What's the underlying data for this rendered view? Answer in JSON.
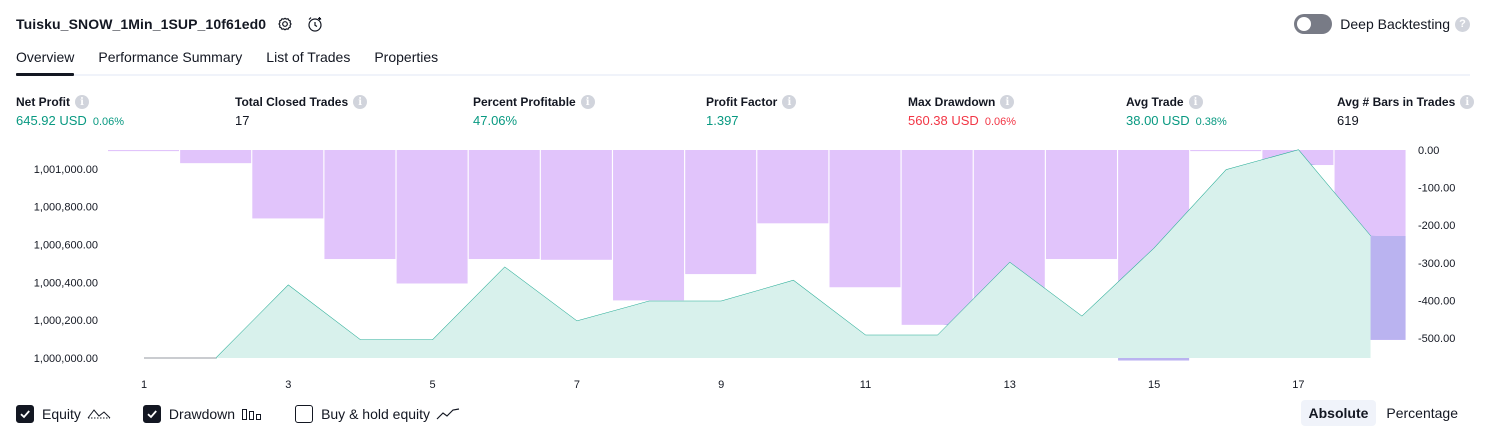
{
  "header": {
    "strategy_name": "Tuisku_SNOW_1Min_1SUP_10f61ed0",
    "icons": [
      "settings-gear-icon",
      "alert-clock-icon"
    ]
  },
  "deep_backtesting": {
    "label": "Deep Backtesting",
    "enabled": false
  },
  "tabs": [
    {
      "label": "Overview",
      "active": true
    },
    {
      "label": "Performance Summary",
      "active": false
    },
    {
      "label": "List of Trades",
      "active": false
    },
    {
      "label": "Properties",
      "active": false
    }
  ],
  "metrics": {
    "net_profit": {
      "label": "Net Profit",
      "value": "645.92 USD",
      "pct": "0.06%"
    },
    "total_closed_trades": {
      "label": "Total Closed Trades",
      "value": "17"
    },
    "percent_profitable": {
      "label": "Percent Profitable",
      "value": "47.06%"
    },
    "profit_factor": {
      "label": "Profit Factor",
      "value": "1.397"
    },
    "max_drawdown": {
      "label": "Max Drawdown",
      "value": "560.38 USD",
      "pct": "0.06%"
    },
    "avg_trade": {
      "label": "Avg Trade",
      "value": "38.00 USD",
      "pct": "0.38%"
    },
    "avg_bars": {
      "label": "Avg # Bars in Trades",
      "value": "619"
    }
  },
  "chart_data": {
    "type": "line",
    "colors": {
      "equity_line": "#22ab94",
      "equity_fill": "#d8f1ec",
      "drawdown": "#e1c4fb",
      "overlap": "#b7b2ef",
      "axis": "#131722"
    },
    "x_ticks": [
      "1",
      "3",
      "5",
      "7",
      "9",
      "11",
      "13",
      "15",
      "17"
    ],
    "left_axis": {
      "ticks": [
        "1,000,000.00",
        "1,000,200.00",
        "1,000,400.00",
        "1,000,600.00",
        "1,000,800.00",
        "1,001,000.00"
      ],
      "ylim": [
        1000000,
        1001100
      ]
    },
    "right_axis": {
      "ticks": [
        "0.00",
        "-100.00",
        "-200.00",
        "-300.00",
        "-400.00",
        "-500.00"
      ],
      "ylim": [
        -550,
        0
      ]
    },
    "equity": [
      {
        "trade": 1,
        "value": 1000000
      },
      {
        "trade": 2,
        "value": 1000000
      },
      {
        "trade": 3,
        "value": 1000385
      },
      {
        "trade": 4,
        "value": 1000095
      },
      {
        "trade": 5,
        "value": 1000095
      },
      {
        "trade": 6,
        "value": 1000480
      },
      {
        "trade": 7,
        "value": 1000195
      },
      {
        "trade": 8,
        "value": 1000300
      },
      {
        "trade": 9,
        "value": 1000300
      },
      {
        "trade": 10,
        "value": 1000410
      },
      {
        "trade": 11,
        "value": 1000120
      },
      {
        "trade": 12,
        "value": 1000120
      },
      {
        "trade": 13,
        "value": 1000505
      },
      {
        "trade": 14,
        "value": 1000220
      },
      {
        "trade": 15,
        "value": 1000580
      },
      {
        "trade": 16,
        "value": 1000995
      },
      {
        "trade": 17,
        "value": 1001100
      },
      {
        "trade": 18,
        "value": 1000645
      }
    ],
    "drawdown": [
      {
        "trade": 1,
        "value": -3
      },
      {
        "trade": 2,
        "value": -35
      },
      {
        "trade": 3,
        "value": -182
      },
      {
        "trade": 4,
        "value": -290
      },
      {
        "trade": 5,
        "value": -355
      },
      {
        "trade": 6,
        "value": -290
      },
      {
        "trade": 7,
        "value": -292
      },
      {
        "trade": 8,
        "value": -400
      },
      {
        "trade": 9,
        "value": -330
      },
      {
        "trade": 10,
        "value": -195
      },
      {
        "trade": 11,
        "value": -365
      },
      {
        "trade": 12,
        "value": -465
      },
      {
        "trade": 13,
        "value": -510
      },
      {
        "trade": 14,
        "value": -290
      },
      {
        "trade": 15,
        "value": -560
      },
      {
        "trade": 16,
        "value": -3
      },
      {
        "trade": 17,
        "value": -40
      },
      {
        "trade": 18,
        "value": -505
      }
    ]
  },
  "legend": [
    {
      "label": "Equity",
      "checked": true,
      "icon": "equity-line-icon"
    },
    {
      "label": "Drawdown",
      "checked": true,
      "icon": "drawdown-bars-icon"
    },
    {
      "label": "Buy & hold equity",
      "checked": false,
      "icon": "buy-hold-line-icon"
    }
  ],
  "scale_toggle": {
    "absolute": "Absolute",
    "percentage": "Percentage",
    "selected": "Absolute"
  }
}
